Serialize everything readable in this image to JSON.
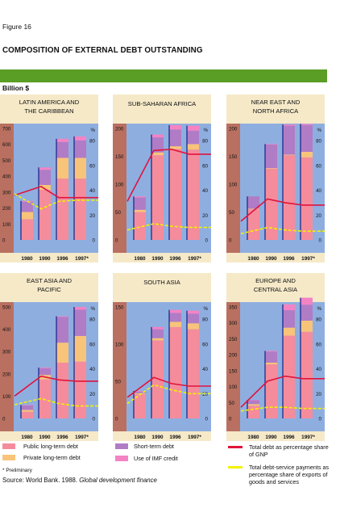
{
  "figure_label": "Figure 16",
  "title": "COMPOSITION OF EXTERNAL DEBT OUTSTANDING",
  "unit_label": "Billion $",
  "colors": {
    "panel_bg": "#f5e9c8",
    "plot_bg": "#8faee0",
    "left_strip": "#b97060",
    "public_long_term_debt": "#f58c9c",
    "private_long_term_debt": "#f8c47a",
    "short_term_debt": "#b07cc6",
    "use_of_imf_credit": "#f483c4",
    "bar_edge": "#1e2a8c",
    "total_debt_gnp_line": "#e0143c",
    "debt_service_line": "#f2f200"
  },
  "chart_data": [
    {
      "type": "bar",
      "title": "LATIN AMERICA AND THE CARIBBEAN",
      "categories": [
        "1980",
        "1990",
        "1996",
        "1997*"
      ],
      "ylim": [
        0,
        700
      ],
      "left_ticks": [
        "700",
        "600",
        "500",
        "400",
        "300",
        "200",
        "100",
        "0"
      ],
      "right_ylim": [
        0,
        80
      ],
      "right_ticks": [
        "%",
        "80",
        "60",
        "40",
        "20",
        "0"
      ],
      "series": [
        {
          "name": "Public long-term debt",
          "values": [
            130,
            315,
            385,
            385
          ]
        },
        {
          "name": "Private long-term debt",
          "values": [
            45,
            30,
            130,
            130
          ]
        },
        {
          "name": "Short-term debt",
          "values": [
            65,
            95,
            100,
            110
          ]
        },
        {
          "name": "Use of IMF credit",
          "values": [
            5,
            15,
            20,
            25
          ]
        }
      ],
      "lines": [
        {
          "name": "Total debt as percentage share of GNP",
          "values": [
            36,
            43,
            34,
            34
          ]
        },
        {
          "name": "Total debt-service payments as percentage share of exports of goods and services",
          "values": [
            37,
            25,
            31,
            32
          ]
        }
      ]
    },
    {
      "type": "bar",
      "title": "SUB-SAHARAN AFRICA",
      "categories": [
        "1980",
        "1990",
        "1996",
        "1997*"
      ],
      "ylim": [
        0,
        200
      ],
      "left_ticks": [
        "200",
        "150",
        "100",
        "50",
        "0"
      ],
      "right_ylim": [
        0,
        80
      ],
      "right_ticks": [
        "%",
        "80",
        "60",
        "40",
        "20",
        "0"
      ],
      "series": [
        {
          "name": "Public long-term debt",
          "values": [
            50,
            152,
            163,
            162
          ]
        },
        {
          "name": "Private long-term debt",
          "values": [
            4,
            5,
            5,
            10
          ]
        },
        {
          "name": "Short-term debt",
          "values": [
            22,
            27,
            30,
            24
          ]
        },
        {
          "name": "Use of IMF credit",
          "values": [
            2,
            5,
            8,
            9
          ]
        }
      ],
      "lines": [
        {
          "name": "Total debt as percentage share of GNP",
          "values": [
            31,
            72,
            73,
            69
          ]
        },
        {
          "name": "Total debt-service payments as percentage share of exports of goods and services",
          "values": [
            8,
            13,
            11,
            10
          ]
        }
      ]
    },
    {
      "type": "bar",
      "title": "NEAR EAST AND NORTH AFRICA",
      "categories": [
        "1980",
        "1990",
        "1996",
        "1997*"
      ],
      "ylim": [
        0,
        200
      ],
      "left_ticks": [
        "200",
        "150",
        "100",
        "50",
        "0"
      ],
      "right_ylim": [
        0,
        80
      ],
      "right_ticks": [
        "%",
        "80",
        "60",
        "40",
        "20",
        "0"
      ],
      "series": [
        {
          "name": "Public long-term debt",
          "values": [
            55,
            128,
            152,
            148
          ]
        },
        {
          "name": "Private long-term debt",
          "values": [
            1,
            1,
            1,
            10
          ]
        },
        {
          "name": "Short-term debt",
          "values": [
            22,
            42,
            52,
            48
          ]
        },
        {
          "name": "Use of IMF credit",
          "values": [
            0,
            1,
            2,
            2
          ]
        }
      ],
      "lines": [
        {
          "name": "Total debt as percentage share of GNP",
          "values": [
            15,
            33,
            30,
            28
          ]
        },
        {
          "name": "Total debt-service payments as percentage share of exports of goods and services",
          "values": [
            5,
            10,
            8,
            7
          ]
        }
      ]
    },
    {
      "type": "bar",
      "title": "EAST ASIA AND PACIFIC",
      "categories": [
        "1980",
        "1990",
        "1996",
        "1997*"
      ],
      "ylim": [
        0,
        500
      ],
      "left_ticks": [
        "500",
        "400",
        "300",
        "200",
        "100",
        "0"
      ],
      "right_ylim": [
        0,
        80
      ],
      "right_ticks": [
        "%",
        "80",
        "60",
        "40",
        "20",
        "0"
      ],
      "series": [
        {
          "name": "Public long-term debt",
          "values": [
            30,
            175,
            250,
            255
          ]
        },
        {
          "name": "Private long-term debt",
          "values": [
            8,
            20,
            90,
            115
          ]
        },
        {
          "name": "Short-term debt",
          "values": [
            20,
            30,
            115,
            118
          ]
        },
        {
          "name": "Use of IMF credit",
          "values": [
            2,
            3,
            3,
            12
          ]
        }
      ],
      "lines": [
        {
          "name": "Total debt as percentage share of GNP",
          "values": [
            18,
            34,
            31,
            30
          ]
        },
        {
          "name": "Total debt-service payments as percentage share of exports of goods and services",
          "values": [
            11,
            16,
            12,
            10
          ]
        }
      ]
    },
    {
      "type": "bar",
      "title": "SOUTH ASIA",
      "categories": [
        "1980",
        "1990",
        "1996",
        "1997*"
      ],
      "ylim": [
        0,
        150
      ],
      "left_ticks": [
        "150",
        "100",
        "50",
        "0"
      ],
      "right_ylim": [
        0,
        80
      ],
      "right_ticks": [
        "%",
        "80",
        "60",
        "40",
        "20",
        "0"
      ],
      "series": [
        {
          "name": "Public long-term debt",
          "values": [
            33,
            105,
            123,
            120
          ]
        },
        {
          "name": "Private long-term debt",
          "values": [
            1,
            3,
            7,
            8
          ]
        },
        {
          "name": "Short-term debt",
          "values": [
            2,
            12,
            12,
            13
          ]
        },
        {
          "name": "Use of IMF credit",
          "values": [
            1,
            3,
            4,
            4
          ]
        }
      ],
      "lines": [
        {
          "name": "Total debt as percentage share of GNP",
          "values": [
            17,
            33,
            28,
            26
          ]
        },
        {
          "name": "Total debt-service payments as percentage share of exports of goods and services",
          "values": [
            12,
            27,
            23,
            20
          ]
        }
      ]
    },
    {
      "type": "bar",
      "title": "EUROPE AND CENTRAL ASIA",
      "categories": [
        "1980",
        "1990",
        "1996",
        "1997*"
      ],
      "ylim": [
        0,
        350
      ],
      "left_ticks": [
        "350",
        "300",
        "250",
        "200",
        "150",
        "100",
        "50",
        "0"
      ],
      "right_ylim": [
        0,
        80
      ],
      "right_ticks": [
        "%",
        "80",
        "60",
        "40",
        "20",
        "0"
      ],
      "series": [
        {
          "name": "Public long-term debt",
          "values": [
            40,
            170,
            260,
            272
          ]
        },
        {
          "name": "Private long-term debt",
          "values": [
            5,
            5,
            25,
            35
          ]
        },
        {
          "name": "Short-term debt",
          "values": [
            12,
            35,
            55,
            50
          ]
        },
        {
          "name": "Use of IMF credit",
          "values": [
            1,
            2,
            18,
            22
          ]
        }
      ],
      "lines": [
        {
          "name": "Total debt as percentage share of GNP",
          "values": [
            9,
            30,
            34,
            32
          ]
        },
        {
          "name": "Total debt-service payments as percentage share of exports of goods and services",
          "values": [
            6,
            9,
            9,
            8
          ]
        }
      ]
    }
  ],
  "legend": [
    {
      "label": "Public long-term debt",
      "kind": "box",
      "color": "#f58c9c"
    },
    {
      "label": "Private long-term debt",
      "kind": "box",
      "color": "#f8c47a"
    },
    {
      "label": "Short-term debt",
      "kind": "box",
      "color": "#b07cc6"
    },
    {
      "label": "Use of IMF credit",
      "kind": "box",
      "color": "#f483c4"
    },
    {
      "label": "Total debt as percentage share of GNP",
      "kind": "line",
      "color": "#e0143c"
    },
    {
      "label": "Total debt-service payments as percentage share of exports of goods and services",
      "kind": "line",
      "color": "#f2f200"
    }
  ],
  "footnote": "* Preliminary",
  "source_prefix": "Source: World Bank. 1988.",
  "source_title": "Global development finance"
}
